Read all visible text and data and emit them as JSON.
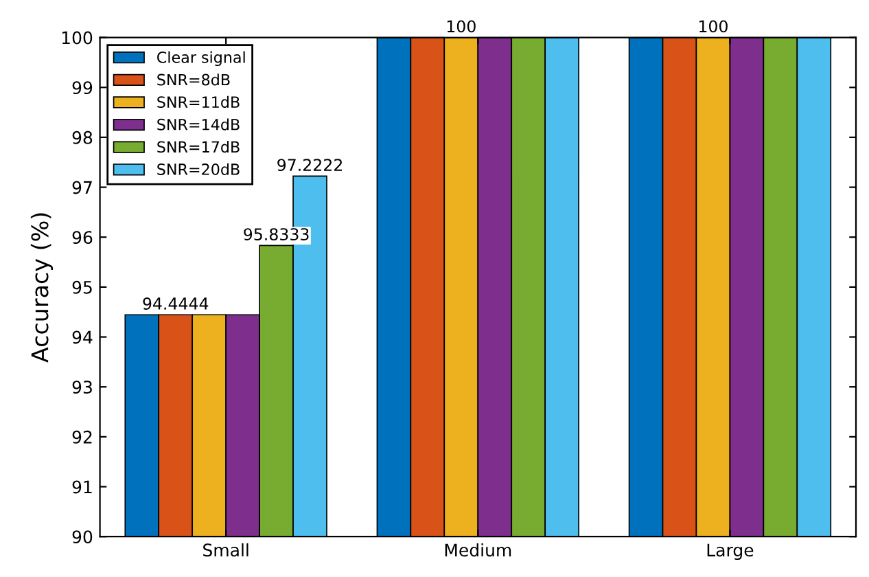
{
  "chart_data": {
    "type": "bar",
    "ylabel": "Accuracy (%)",
    "categories": [
      "Small",
      "Medium",
      "Large"
    ],
    "series": [
      {
        "name": "Clear signal",
        "color": "#0072bd",
        "values": [
          94.4444,
          100,
          100
        ],
        "value_labels": [
          null,
          null,
          null
        ]
      },
      {
        "name": "SNR=8dB",
        "color": "#d95319",
        "values": [
          94.4444,
          100,
          100
        ],
        "value_labels": [
          "94.4444",
          null,
          null
        ]
      },
      {
        "name": "SNR=11dB",
        "color": "#edb120",
        "values": [
          94.4444,
          100,
          100
        ],
        "value_labels": [
          null,
          "100",
          "100"
        ]
      },
      {
        "name": "SNR=14dB",
        "color": "#7e2f8e",
        "values": [
          94.4444,
          100,
          100
        ],
        "value_labels": [
          null,
          null,
          null
        ]
      },
      {
        "name": "SNR=17dB",
        "color": "#77ac30",
        "values": [
          95.8333,
          100,
          100
        ],
        "value_labels": [
          "95.8333",
          null,
          null
        ]
      },
      {
        "name": "SNR=20dB",
        "color": "#4dbeee",
        "values": [
          97.2222,
          100,
          100
        ],
        "value_labels": [
          "97.2222",
          null,
          null
        ]
      }
    ],
    "ylim": [
      90,
      100
    ],
    "yticks": [
      90,
      91,
      92,
      93,
      94,
      95,
      96,
      97,
      98,
      99,
      100
    ],
    "grid": false,
    "legend": "top left"
  }
}
